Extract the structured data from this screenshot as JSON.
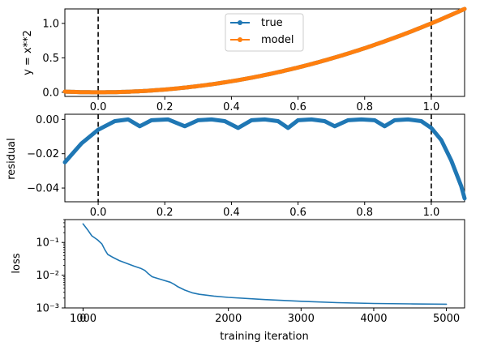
{
  "chart_data": [
    {
      "type": "line",
      "ylabel": "y = x**2",
      "xlim": [
        -0.1,
        1.1
      ],
      "ylim": [
        -0.06,
        1.21
      ],
      "x_ticks": [
        "0.0",
        "0.2",
        "0.4",
        "0.6",
        "0.8",
        "1.0"
      ],
      "y_ticks": [
        "0.0",
        "0.5",
        "1.0"
      ],
      "vlines": [
        0.0,
        1.0
      ],
      "legend": {
        "position": "upper-center",
        "entries": [
          "true",
          "model"
        ]
      },
      "series": [
        {
          "name": "true",
          "color": "#1f77b4",
          "function": "x^2",
          "x_range": [
            -0.1,
            1.1
          ]
        },
        {
          "name": "model",
          "color": "#ff7f0e",
          "function": "x^2",
          "x_range": [
            -0.1,
            1.1
          ]
        }
      ]
    },
    {
      "type": "line",
      "ylabel": "residual",
      "xlim": [
        -0.1,
        1.1
      ],
      "ylim": [
        -0.048,
        0.003
      ],
      "x_ticks": [
        "0.0",
        "0.2",
        "0.4",
        "0.6",
        "0.8",
        "1.0"
      ],
      "y_ticks": [
        "0.00",
        "−0.02",
        "−0.04"
      ],
      "vlines": [
        0.0,
        1.0
      ],
      "series": [
        {
          "color": "#1f77b4",
          "x": [
            -0.1,
            -0.05,
            0.0,
            0.05,
            0.09,
            0.125,
            0.16,
            0.21,
            0.26,
            0.3,
            0.34,
            0.38,
            0.42,
            0.46,
            0.5,
            0.54,
            0.57,
            0.6,
            0.64,
            0.68,
            0.71,
            0.75,
            0.79,
            0.83,
            0.86,
            0.89,
            0.93,
            0.97,
            1.0,
            1.03,
            1.06,
            1.09,
            1.1
          ],
          "values": [
            -0.025,
            -0.014,
            -0.006,
            -0.001,
            0.0,
            -0.004,
            -0.0005,
            0.0,
            -0.004,
            -0.0005,
            0.0,
            -0.001,
            -0.005,
            -0.0005,
            0.0,
            -0.001,
            -0.005,
            -0.0005,
            0.0,
            -0.001,
            -0.004,
            -0.0005,
            0.0,
            -0.0005,
            -0.004,
            -0.0005,
            0.0,
            -0.001,
            -0.005,
            -0.012,
            -0.024,
            -0.039,
            -0.046
          ]
        }
      ]
    },
    {
      "type": "line",
      "xlabel": "training iteration",
      "ylabel": "loss",
      "yscale": "log",
      "xlim": [
        -250,
        5250
      ],
      "ylim": [
        0.001,
        0.5
      ],
      "x_ticks": [
        "0",
        "1000",
        "2000",
        "3000",
        "4000",
        "5000"
      ],
      "y_ticks": [
        "10⁻³",
        "10⁻²",
        "10⁻¹"
      ],
      "series": [
        {
          "color": "#1f77b4",
          "x": [
            0,
            60,
            120,
            200,
            260,
            300,
            340,
            400,
            500,
            600,
            700,
            800,
            850,
            900,
            950,
            1000,
            1100,
            1200,
            1250,
            1300,
            1400,
            1500,
            1600,
            1800,
            2000,
            2500,
            3000,
            3500,
            4000,
            4500,
            5000
          ],
          "values": [
            0.37,
            0.25,
            0.16,
            0.12,
            0.09,
            0.06,
            0.043,
            0.036,
            0.028,
            0.023,
            0.019,
            0.016,
            0.014,
            0.011,
            0.009,
            0.0083,
            0.0071,
            0.0061,
            0.0053,
            0.0045,
            0.0035,
            0.0029,
            0.0026,
            0.0023,
            0.0021,
            0.0018,
            0.0016,
            0.00145,
            0.00137,
            0.00133,
            0.0013
          ]
        }
      ]
    }
  ]
}
